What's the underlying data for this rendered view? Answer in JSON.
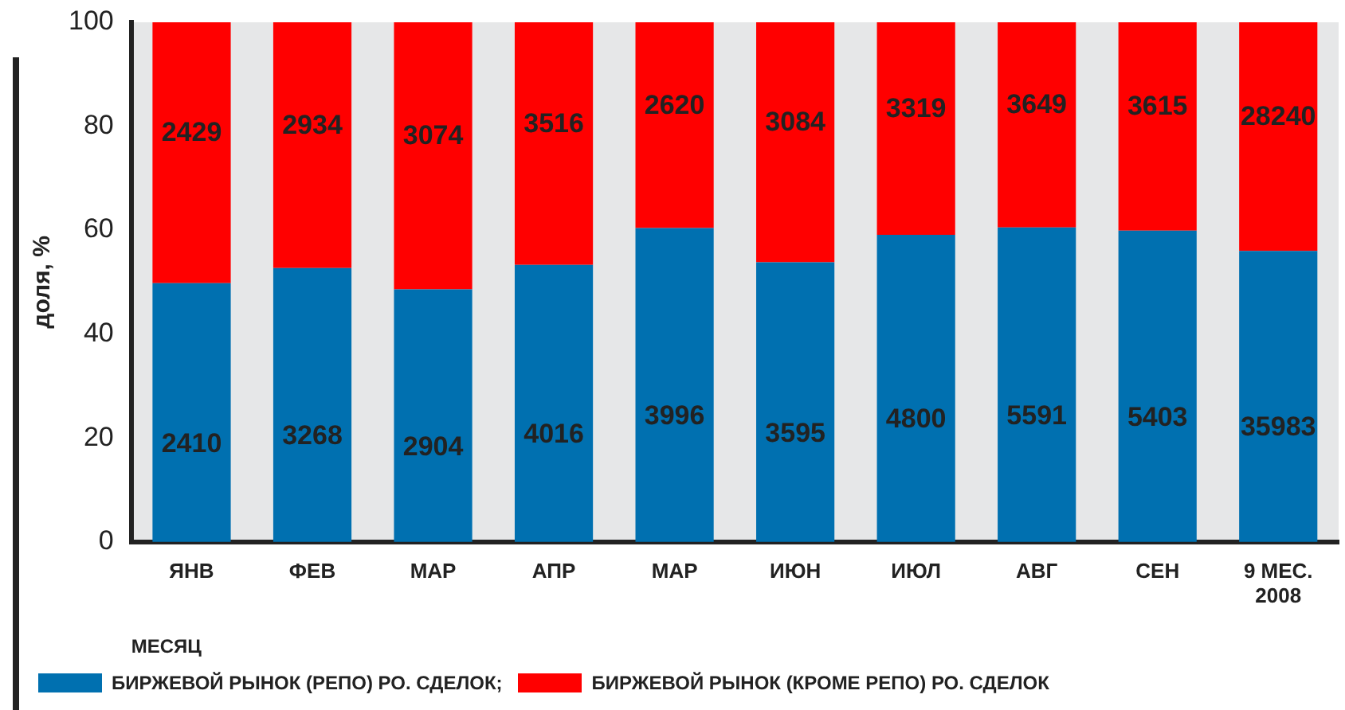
{
  "chart_data": {
    "type": "bar",
    "stacked": true,
    "xlabel": "МЕСЯЦ",
    "ylabel": "доля, %",
    "categories": [
      "ЯНВ",
      "ФЕВ",
      "МАР",
      "АПР",
      "МАР",
      "ИЮН",
      "ИЮЛ",
      "АВГ",
      "СЕН",
      "9 МЕС.\n2008"
    ],
    "series": [
      {
        "name": "БИРЖЕВОЙ РЫНОК (РЕПО) РО. СДЕЛОК;",
        "color": "#0070b0",
        "values": [
          49.8,
          52.7,
          48.6,
          53.3,
          60.4,
          53.8,
          59.1,
          60.5,
          59.9,
          56.0
        ]
      },
      {
        "name": "БИРЖЕВОЙ РЫНОК (КРОМЕ РЕПО) РО. СДЕЛОК",
        "color": "#ff0000",
        "values": [
          50.2,
          47.3,
          51.4,
          46.7,
          39.6,
          46.2,
          40.9,
          39.5,
          40.1,
          44.0
        ]
      }
    ],
    "annotations": [
      "2410",
      "3268",
      "2904",
      "4016",
      "3996",
      "3595",
      "4800",
      "5591",
      "5403",
      "35983",
      "2429",
      "2934",
      "3074",
      "3516",
      "2620",
      "3084",
      "3319",
      "3649",
      "3615",
      "28240"
    ],
    "ylim": [
      0,
      100
    ],
    "yticks": [
      0,
      20,
      40,
      60,
      80,
      100
    ],
    "grid": false,
    "legend": "bottom"
  }
}
